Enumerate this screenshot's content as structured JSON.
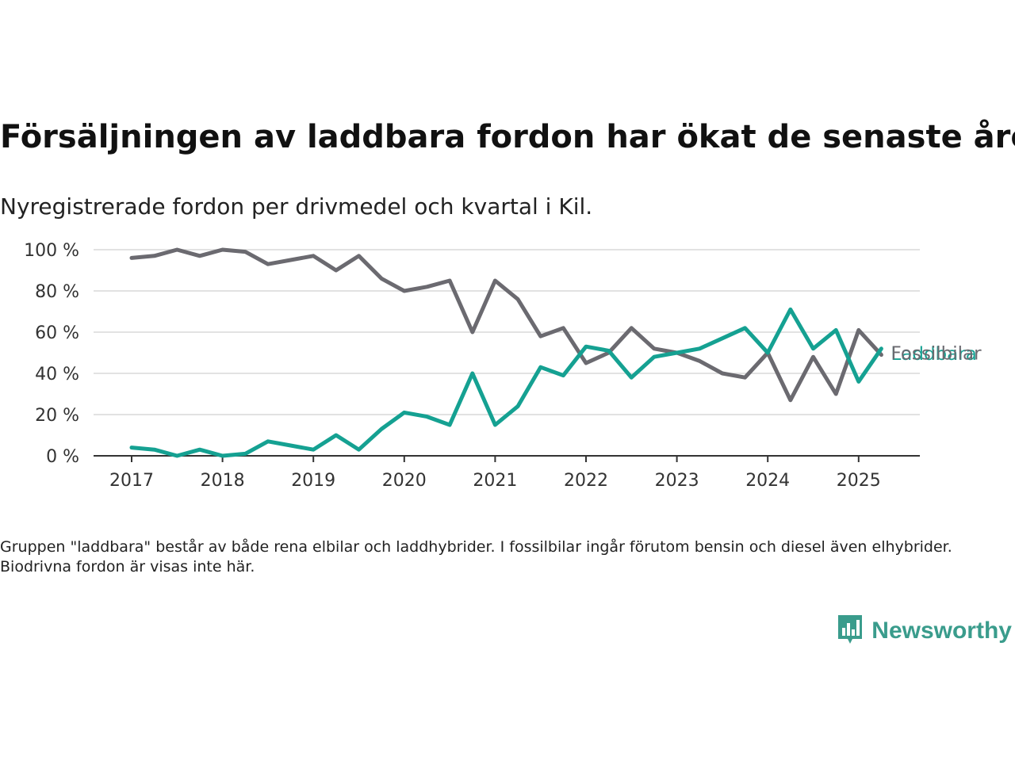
{
  "title": "Försäljningen av laddbara fordon har ökat de senaste åren",
  "subtitle": "Nyregistrerade fordon per drivmedel och kvartal i Kil.",
  "note": "Gruppen \"laddbara\" består av både rena elbilar och laddhybrider. I fossilbilar ingår förutom bensin och diesel även elhybrider. Biodrivna fordon är visas inte här.",
  "brand": {
    "name": "Newsworthy",
    "icon": "newsworthy-logo-icon",
    "color": "#3a9c8c"
  },
  "chart_data": {
    "type": "line",
    "ylim": [
      0,
      100
    ],
    "y_ticks": [
      0,
      20,
      40,
      60,
      80,
      100
    ],
    "y_tick_labels": [
      "0 %",
      "20 %",
      "40 %",
      "60 %",
      "80 %",
      "100 %"
    ],
    "x_tick_labels": [
      "2017",
      "2018",
      "2019",
      "2020",
      "2021",
      "2022",
      "2023",
      "2024",
      "2025"
    ],
    "x": [
      "2017 Q1",
      "2017 Q2",
      "2017 Q3",
      "2017 Q4",
      "2018 Q1",
      "2018 Q2",
      "2018 Q3",
      "2018 Q4",
      "2019 Q1",
      "2019 Q2",
      "2019 Q3",
      "2019 Q4",
      "2020 Q1",
      "2020 Q2",
      "2020 Q3",
      "2020 Q4",
      "2021 Q1",
      "2021 Q2",
      "2021 Q3",
      "2021 Q4",
      "2022 Q1",
      "2022 Q2",
      "2022 Q3",
      "2022 Q4",
      "2023 Q1",
      "2023 Q2",
      "2023 Q3",
      "2023 Q4",
      "2024 Q1",
      "2024 Q2",
      "2024 Q3",
      "2024 Q4",
      "2025 Q1",
      "2025 Q2"
    ],
    "grid": true,
    "series": [
      {
        "name": "Fossilbilar",
        "color": "#6b6a70",
        "values": [
          96,
          97,
          100,
          97,
          100,
          99,
          93,
          95,
          97,
          90,
          97,
          86,
          80,
          82,
          85,
          60,
          85,
          76,
          58,
          62,
          45,
          50,
          62,
          52,
          50,
          46,
          40,
          38,
          50,
          27,
          48,
          30,
          61,
          49
        ]
      },
      {
        "name": "Laddbara",
        "color": "#15a192",
        "values": [
          4,
          3,
          0,
          3,
          0,
          1,
          7,
          5,
          3,
          10,
          3,
          13,
          21,
          19,
          15,
          40,
          15,
          24,
          43,
          39,
          53,
          51,
          38,
          48,
          50,
          52,
          57,
          62,
          50,
          71,
          52,
          61,
          36,
          52
        ]
      }
    ]
  }
}
